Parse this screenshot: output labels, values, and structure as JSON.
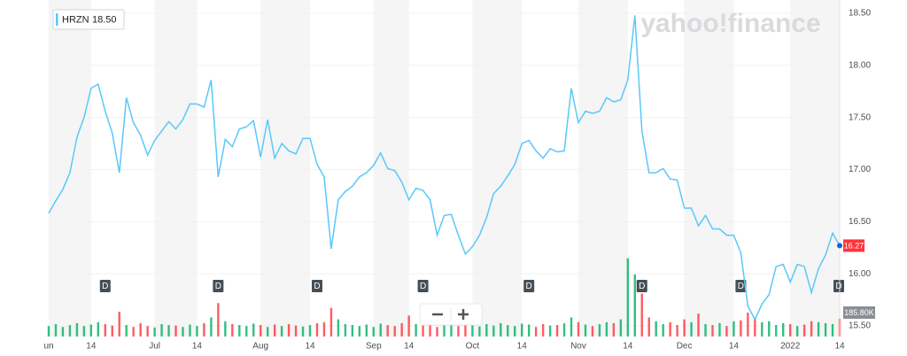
{
  "chart_data": {
    "type": "line",
    "watermark": "yahoo!finance",
    "legend_value": "18.50",
    "categories": [
      "un",
      null,
      null,
      null,
      null,
      null,
      "14",
      null,
      null,
      null,
      null,
      null,
      null,
      null,
      null,
      "Jul",
      null,
      null,
      null,
      null,
      null,
      "14",
      null,
      null,
      null,
      null,
      null,
      null,
      null,
      null,
      "Aug",
      null,
      null,
      null,
      null,
      null,
      null,
      "14",
      null,
      null,
      null,
      null,
      null,
      null,
      null,
      null,
      "Sep",
      null,
      null,
      null,
      null,
      "14",
      null,
      null,
      null,
      null,
      null,
      null,
      null,
      null,
      "Oct",
      null,
      null,
      null,
      null,
      null,
      null,
      "14",
      null,
      null,
      null,
      null,
      null,
      null,
      null,
      "Nov",
      null,
      null,
      null,
      null,
      null,
      null,
      "14",
      null,
      null,
      null,
      null,
      null,
      null,
      null,
      "Dec",
      null,
      null,
      null,
      null,
      null,
      null,
      "14",
      null,
      null,
      null,
      null,
      null,
      null,
      null,
      "2022",
      null,
      null,
      null,
      null,
      null,
      null,
      "14"
    ],
    "series": [
      {
        "name": "HRZN",
        "color": "#5ac8fa",
        "values": [
          16.58,
          16.7,
          16.81,
          16.97,
          17.31,
          17.5,
          17.78,
          17.82,
          17.56,
          17.35,
          16.97,
          17.69,
          17.45,
          17.33,
          17.14,
          17.28,
          17.37,
          17.46,
          17.39,
          17.48,
          17.63,
          17.63,
          17.6,
          17.86,
          16.93,
          17.29,
          17.22,
          17.39,
          17.41,
          17.47,
          17.12,
          17.48,
          17.11,
          17.25,
          17.18,
          17.15,
          17.3,
          17.3,
          17.05,
          16.93,
          16.24,
          16.71,
          16.79,
          16.84,
          16.93,
          16.97,
          17.04,
          17.16,
          17.01,
          16.99,
          16.88,
          16.71,
          16.82,
          16.8,
          16.71,
          16.37,
          16.56,
          16.57,
          16.37,
          16.19,
          16.26,
          16.37,
          16.54,
          16.77,
          16.84,
          16.94,
          17.05,
          17.25,
          17.28,
          17.18,
          17.11,
          17.2,
          17.17,
          17.18,
          17.78,
          17.45,
          17.56,
          17.54,
          17.56,
          17.69,
          17.65,
          17.67,
          17.86,
          18.48,
          17.37,
          16.97,
          16.97,
          17.01,
          16.91,
          16.9,
          16.63,
          16.63,
          16.46,
          16.56,
          16.43,
          16.43,
          16.37,
          16.37,
          16.2,
          15.69,
          15.56,
          15.71,
          15.8,
          16.07,
          16.09,
          15.92,
          16.09,
          16.07,
          15.82,
          16.05,
          16.18,
          16.39,
          16.27
        ]
      }
    ],
    "current_price": 16.27,
    "volume": {
      "up_color": "#00b061",
      "down_color": "#ff333a",
      "lim": [
        0,
        900000
      ],
      "last_label": "185.80K",
      "values": [
        110000,
        130000,
        100000,
        120000,
        140000,
        110000,
        125000,
        150000,
        130000,
        115000,
        260000,
        120000,
        100000,
        140000,
        110000,
        95000,
        130000,
        120000,
        115000,
        100000,
        125000,
        110000,
        140000,
        200000,
        350000,
        160000,
        130000,
        120000,
        110000,
        135000,
        120000,
        100000,
        125000,
        110000,
        130000,
        115000,
        105000,
        120000,
        140000,
        150000,
        300000,
        180000,
        130000,
        120000,
        110000,
        125000,
        100000,
        135000,
        120000,
        110000,
        140000,
        220000,
        130000,
        115000,
        120000,
        100000,
        130000,
        150000,
        110000,
        120000,
        125000,
        105000,
        130000,
        115000,
        140000,
        120000,
        110000,
        135000,
        125000,
        100000,
        130000,
        115000,
        120000,
        140000,
        200000,
        150000,
        125000,
        110000,
        130000,
        150000,
        140000,
        180000,
        820000,
        650000,
        450000,
        200000,
        160000,
        130000,
        150000,
        120000,
        180000,
        150000,
        240000,
        130000,
        120000,
        140000,
        110000,
        160000,
        170000,
        250000,
        200000,
        150000,
        160000,
        120000,
        140000,
        130000,
        110000,
        125000,
        160000,
        150000,
        140000,
        130000,
        185800
      ]
    },
    "events": [
      {
        "label": "D",
        "index": 8
      },
      {
        "label": "D",
        "index": 24
      },
      {
        "label": "D",
        "index": 38
      },
      {
        "label": "D",
        "index": 53
      },
      {
        "label": "D",
        "index": 68
      },
      {
        "label": "D",
        "index": 84
      },
      {
        "label": "D",
        "index": 98
      },
      {
        "label": "D",
        "index": 112
      }
    ],
    "ylim": [
      15.4,
      18.6
    ],
    "yticks": [
      {
        "value": 15.5,
        "label": "15.50"
      },
      {
        "value": 16,
        "label": "16.00"
      },
      {
        "value": 16.5,
        "label": "16.50"
      },
      {
        "value": 17,
        "label": "17.00"
      },
      {
        "value": 17.5,
        "label": "17.50"
      },
      {
        "value": 18,
        "label": "18.00"
      },
      {
        "value": 18.5,
        "label": "18.50"
      }
    ],
    "grid": true
  }
}
